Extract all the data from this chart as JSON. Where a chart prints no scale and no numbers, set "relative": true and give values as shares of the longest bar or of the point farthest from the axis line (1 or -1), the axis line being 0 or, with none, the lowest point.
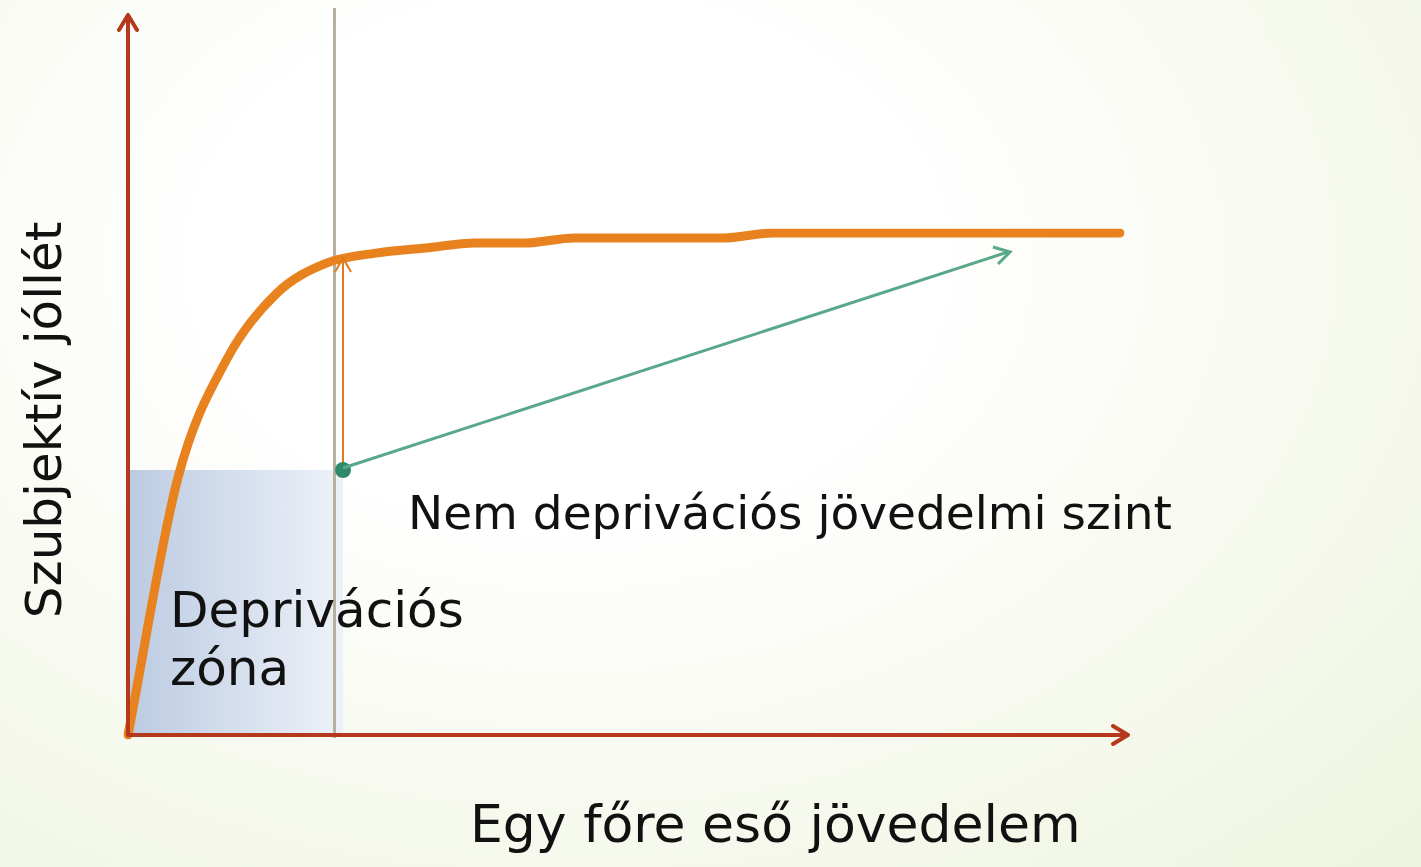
{
  "chart_data": {
    "type": "line",
    "relative": true,
    "xlabel": "Egy főre eső jövedelem",
    "ylabel": "Szubjektív jóllét",
    "categories": [
      null,
      null,
      null,
      null,
      null,
      null,
      null,
      null,
      null,
      null,
      null,
      null,
      null,
      null,
      null,
      null,
      null,
      null,
      null,
      null,
      null
    ],
    "series": [
      {
        "color": "#e8821e",
        "values": [
          0,
          0.51,
          0.75,
          0.88,
          0.94,
          0.96,
          0.97,
          0.98,
          0.98,
          0.99,
          0.99,
          0.99,
          0.99,
          1,
          1,
          1,
          1,
          1,
          1,
          1,
          1
        ]
      }
    ],
    "marker": "none",
    "line_style": "solid",
    "legend": false,
    "annotations": [
      "Deprivációs zóna",
      "Nem deprivációs jövedelmi szint"
    ]
  }
}
